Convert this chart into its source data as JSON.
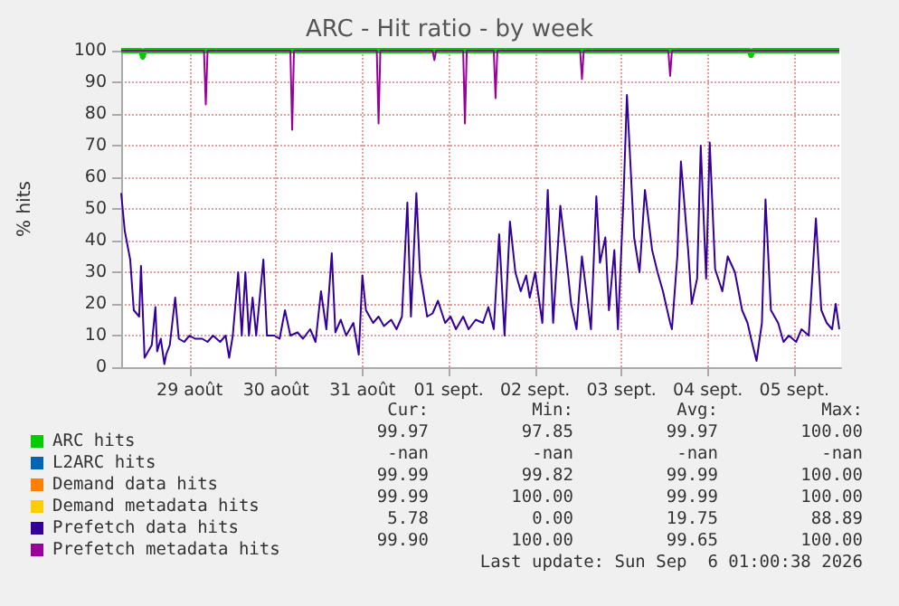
{
  "chart_data": {
    "type": "line",
    "title": "ARC - Hit ratio - by week",
    "ylabel": "% hits",
    "xlim": [
      "2026-08-28T17:00",
      "2026-09-06T01:00"
    ],
    "xticks": [
      {
        "value": "2026-08-29T12:00",
        "label": "29 août"
      },
      {
        "value": "2026-08-30T12:00",
        "label": "30 août"
      },
      {
        "value": "2026-08-31T12:00",
        "label": "31 août"
      },
      {
        "value": "2026-09-01T12:00",
        "label": "01 sept."
      },
      {
        "value": "2026-09-02T12:00",
        "label": "02 sept."
      },
      {
        "value": "2026-09-03T12:00",
        "label": "03 sept."
      },
      {
        "value": "2026-09-04T12:00",
        "label": "04 sept."
      },
      {
        "value": "2026-09-05T12:00",
        "label": "05 sept."
      }
    ],
    "ylim": [
      0,
      100
    ],
    "yticks": [
      0,
      10,
      20,
      30,
      40,
      50,
      60,
      70,
      80,
      90,
      100
    ],
    "grid": true,
    "legend": "bottom",
    "marker": "none",
    "series": [
      {
        "name": "ARC hits",
        "color": "#00cc00",
        "x": [
          "2026-08-28T17:00",
          "2026-08-28T22:30",
          "2026-08-28T23:00",
          "2026-08-28T23:30",
          "2026-09-04T23:30",
          "2026-09-05T00:00",
          "2026-09-05T00:30",
          "2026-09-06T00:30"
        ],
        "values": [
          100,
          100,
          98,
          100,
          100,
          98.5,
          100,
          100
        ]
      },
      {
        "name": "L2ARC hits",
        "color": "#0066b3"
      },
      {
        "name": "Demand data hits",
        "color": "#ff8000"
      },
      {
        "name": "Demand metadata hits",
        "color": "#ffcc00"
      },
      {
        "name": "Prefetch data hits",
        "color": "#330099",
        "x": [
          "2026-08-28T17:00",
          "2026-08-28T18:00",
          "2026-08-28T19:30",
          "2026-08-28T20:30",
          "2026-08-28T22:00",
          "2026-08-28T22:30",
          "2026-08-28T23:30",
          "2026-08-29T00:30",
          "2026-08-29T01:30",
          "2026-08-29T02:30",
          "2026-08-29T03:00",
          "2026-08-29T04:00",
          "2026-08-29T05:00",
          "2026-08-29T05:30",
          "2026-08-29T06:30",
          "2026-08-29T08:00",
          "2026-08-29T09:00",
          "2026-08-29T10:30",
          "2026-08-29T12:00",
          "2026-08-29T13:30",
          "2026-08-29T15:30",
          "2026-08-29T17:00",
          "2026-08-29T18:30",
          "2026-08-29T20:30",
          "2026-08-29T22:00",
          "2026-08-29T23:00",
          "2026-08-30T00:00",
          "2026-08-30T01:30",
          "2026-08-30T02:30",
          "2026-08-30T03:30",
          "2026-08-30T04:30",
          "2026-08-30T05:30",
          "2026-08-30T06:30",
          "2026-08-30T08:30",
          "2026-08-30T09:30",
          "2026-08-30T11:30",
          "2026-08-30T13:00",
          "2026-08-30T14:30",
          "2026-08-30T16:00",
          "2026-08-30T18:00",
          "2026-08-30T19:30",
          "2026-08-30T21:30",
          "2026-08-30T23:00",
          "2026-08-31T00:30",
          "2026-08-31T02:00",
          "2026-08-31T03:30",
          "2026-08-31T04:30",
          "2026-08-31T06:00",
          "2026-08-31T07:30",
          "2026-08-31T09:30",
          "2026-08-31T11:00",
          "2026-08-31T12:00",
          "2026-08-31T13:00",
          "2026-08-31T15:00",
          "2026-08-31T16:30",
          "2026-08-31T18:00",
          "2026-08-31T20:00",
          "2026-08-31T21:30",
          "2026-08-31T23:00",
          "2026-09-01T00:30",
          "2026-09-01T01:30",
          "2026-09-01T03:00",
          "2026-09-01T04:00",
          "2026-09-01T06:00",
          "2026-09-01T07:30",
          "2026-09-01T09:00",
          "2026-09-01T11:00",
          "2026-09-01T12:30",
          "2026-09-01T14:00",
          "2026-09-01T16:00",
          "2026-09-01T17:30",
          "2026-09-01T19:30",
          "2026-09-01T21:30",
          "2026-09-01T23:00",
          "2026-09-02T00:30",
          "2026-09-02T02:00",
          "2026-09-02T03:30",
          "2026-09-02T05:00",
          "2026-09-02T06:30",
          "2026-09-02T08:00",
          "2026-09-02T09:30",
          "2026-09-02T10:30",
          "2026-09-02T12:00",
          "2026-09-02T14:00",
          "2026-09-02T15:30",
          "2026-09-02T17:00",
          "2026-09-02T19:00",
          "2026-09-02T21:00",
          "2026-09-02T22:00",
          "2026-09-02T23:30",
          "2026-09-03T01:00",
          "2026-09-03T03:30",
          "2026-09-03T05:00",
          "2026-09-03T06:00",
          "2026-09-03T07:30",
          "2026-09-03T08:30",
          "2026-09-03T10:00",
          "2026-09-03T11:00",
          "2026-09-03T12:30",
          "2026-09-03T13:30",
          "2026-09-03T15:30",
          "2026-09-03T17:00",
          "2026-09-03T18:30",
          "2026-09-03T20:30",
          "2026-09-03T22:00",
          "2026-09-03T23:30",
          "2026-09-04T01:30",
          "2026-09-04T02:00",
          "2026-09-04T03:30",
          "2026-09-04T04:30",
          "2026-09-04T06:30",
          "2026-09-04T07:30",
          "2026-09-04T09:00",
          "2026-09-04T10:00",
          "2026-09-04T11:30",
          "2026-09-04T12:30",
          "2026-09-04T14:00",
          "2026-09-04T16:00",
          "2026-09-04T17:30",
          "2026-09-04T19:30",
          "2026-09-04T21:30",
          "2026-09-04T23:00",
          "2026-09-05T00:00",
          "2026-09-05T01:30",
          "2026-09-05T03:00",
          "2026-09-05T04:00",
          "2026-09-05T05:30",
          "2026-09-05T07:30",
          "2026-09-05T09:00",
          "2026-09-05T10:30",
          "2026-09-05T12:30",
          "2026-09-05T14:00",
          "2026-09-05T16:00",
          "2026-09-05T18:00",
          "2026-09-05T19:30",
          "2026-09-05T21:00",
          "2026-09-05T22:30",
          "2026-09-05T23:30",
          "2026-09-06T00:30"
        ],
        "values": [
          55,
          43,
          34,
          18,
          16,
          32,
          3,
          5,
          7,
          19,
          5,
          9,
          1,
          4,
          7,
          22,
          9,
          8,
          10,
          9,
          9,
          8,
          10,
          8,
          10,
          3,
          10,
          30,
          10,
          30,
          10,
          22,
          10,
          34,
          10,
          10,
          9,
          18,
          10,
          11,
          9,
          12,
          8,
          24,
          12,
          36,
          11,
          15,
          10,
          14,
          4,
          29,
          18,
          14,
          16,
          13,
          15,
          12,
          16,
          52,
          16,
          55,
          30,
          16,
          17,
          21,
          14,
          16,
          12,
          16,
          12,
          15,
          14,
          19,
          12,
          42,
          10,
          46,
          30,
          24,
          29,
          22,
          30,
          14,
          56,
          14,
          51,
          31,
          20,
          12,
          35,
          12,
          54,
          33,
          41,
          18,
          37,
          12,
          52,
          86,
          41,
          30,
          56,
          37,
          30,
          24,
          14,
          12,
          35,
          65,
          37,
          20,
          28,
          70,
          28,
          71,
          31,
          24,
          35,
          30,
          18,
          14,
          9,
          2,
          14,
          53,
          18,
          14,
          8,
          10,
          8,
          12,
          10,
          47,
          18,
          14,
          12,
          20,
          12
        ]
      },
      {
        "name": "Prefetch metadata hits",
        "color": "#990099",
        "x": [
          "2026-08-28T17:00",
          "2026-08-29T16:00",
          "2026-08-29T16:30",
          "2026-08-29T17:00",
          "2026-08-30T16:00",
          "2026-08-30T16:30",
          "2026-08-30T17:00",
          "2026-08-31T16:00",
          "2026-08-31T16:30",
          "2026-08-31T17:00",
          "2026-09-01T07:30",
          "2026-09-01T08:00",
          "2026-09-01T08:30",
          "2026-09-01T16:00",
          "2026-09-01T16:30",
          "2026-09-01T17:00",
          "2026-09-02T00:30",
          "2026-09-02T01:00",
          "2026-09-02T01:30",
          "2026-09-03T00:30",
          "2026-09-03T01:00",
          "2026-09-03T01:30",
          "2026-09-04T01:00",
          "2026-09-04T01:30",
          "2026-09-04T02:00",
          "2026-09-06T00:30"
        ],
        "values": [
          100,
          100,
          83,
          100,
          100,
          75,
          100,
          100,
          77,
          100,
          100,
          97,
          100,
          100,
          77,
          100,
          100,
          85,
          100,
          100,
          91,
          100,
          100,
          92,
          100,
          100
        ]
      }
    ],
    "annotations": [
      "Cur:",
      "Min:",
      "Avg:",
      "Max:",
      "99.97",
      "97.85",
      "99.97",
      "100.00",
      "-nan",
      "-nan",
      "-nan",
      "-nan",
      "99.99",
      "99.82",
      "99.99",
      "100.00",
      "99.99",
      "100.00",
      "99.99",
      "100.00",
      "5.78",
      "0.00",
      "19.75",
      "88.89",
      "99.90",
      "100.00",
      "99.65",
      "100.00",
      "Last update: Sun Sep  6 01:00:38 2026"
    ]
  }
}
